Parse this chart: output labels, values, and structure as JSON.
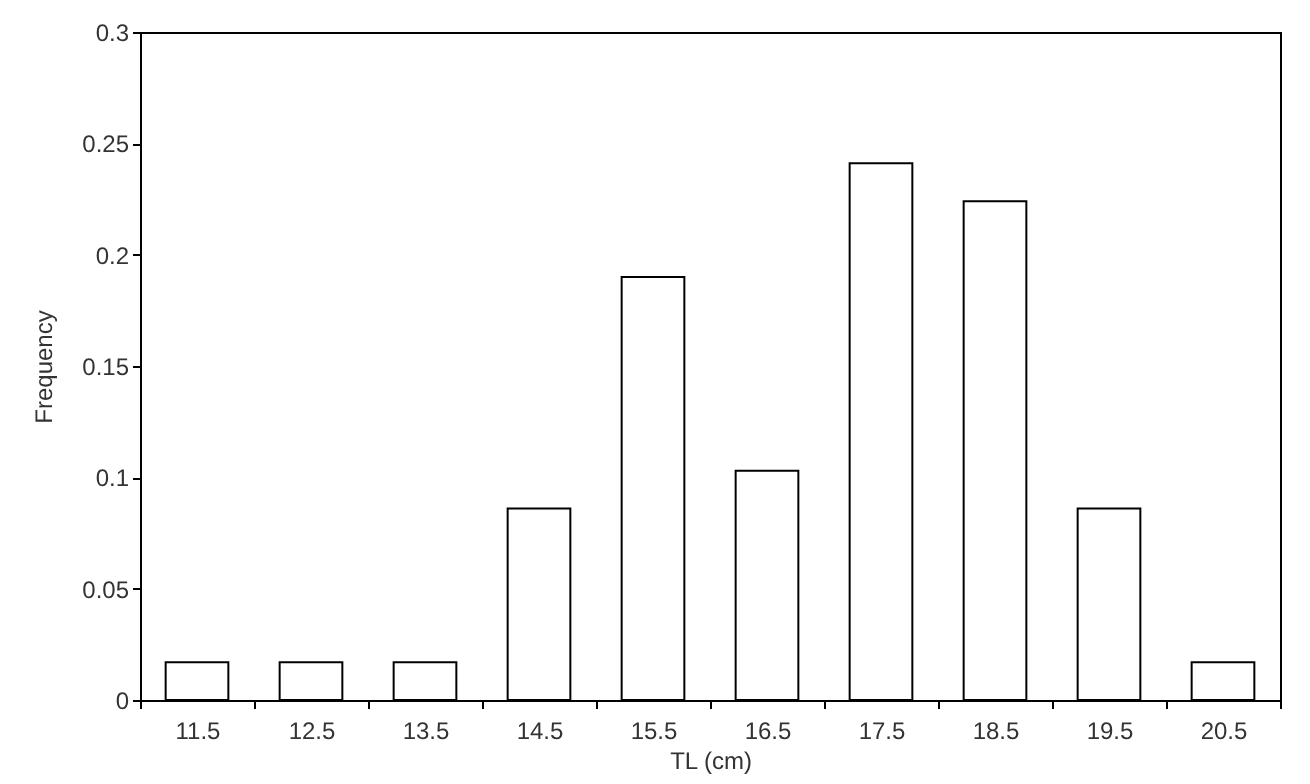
{
  "chart_data": {
    "type": "bar",
    "xlabel": "TL (cm)",
    "ylabel": "Frequency",
    "categories": [
      "11.5",
      "12.5",
      "13.5",
      "14.5",
      "15.5",
      "16.5",
      "17.5",
      "18.5",
      "19.5",
      "20.5"
    ],
    "values": [
      0.017,
      0.017,
      0.017,
      0.086,
      0.19,
      0.103,
      0.241,
      0.224,
      0.086,
      0.017
    ],
    "color": "#ffffff",
    "ylim": [
      0,
      0.3
    ],
    "yticks": [
      0,
      0.05,
      0.1,
      0.15,
      0.2,
      0.25,
      0.3
    ]
  }
}
